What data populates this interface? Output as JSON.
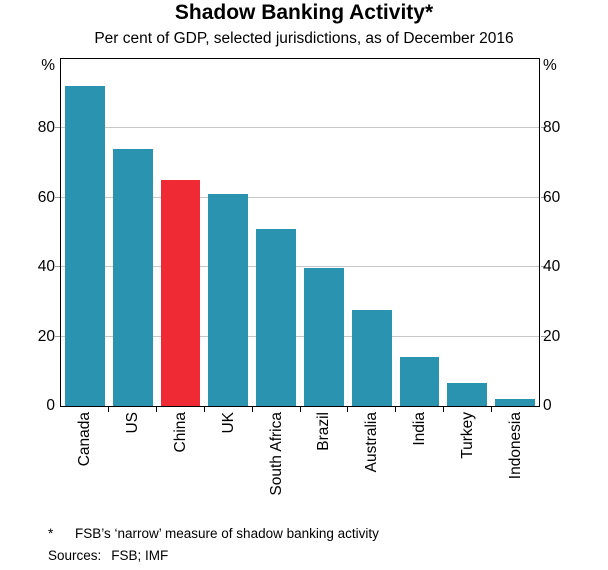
{
  "page": {
    "title": "Shadow Banking Activity*",
    "subtitle": "Per cent of GDP, selected jurisdictions, as of December 2016",
    "footnote_marker": "*",
    "footnote_text": "FSB’s ‘narrow’ measure of shadow banking activity",
    "sources_label": "Sources:",
    "sources_value": "FSB; IMF"
  },
  "chart_data": {
    "type": "bar",
    "title": "Shadow Banking Activity*",
    "subtitle": "Per cent of GDP, selected jurisdictions, as of December 2016",
    "categories": [
      "Canada",
      "US",
      "China",
      "UK",
      "South Africa",
      "Brazil",
      "Australia",
      "India",
      "Turkey",
      "Indonesia"
    ],
    "values": [
      92,
      74,
      65,
      61,
      51,
      39.5,
      27.5,
      14,
      6.5,
      2
    ],
    "unit": "%",
    "axis_label_left": "%",
    "axis_label_right": "%",
    "yticks": [
      0,
      20,
      40,
      60,
      80
    ],
    "ylim": [
      0,
      100
    ],
    "grid": true,
    "legend": "none",
    "highlight_category": "China",
    "colors": {
      "bar": "#2A93AF",
      "highlight": "#F02A35",
      "gridline": "#C7C7C7",
      "frame": "#000000"
    }
  }
}
